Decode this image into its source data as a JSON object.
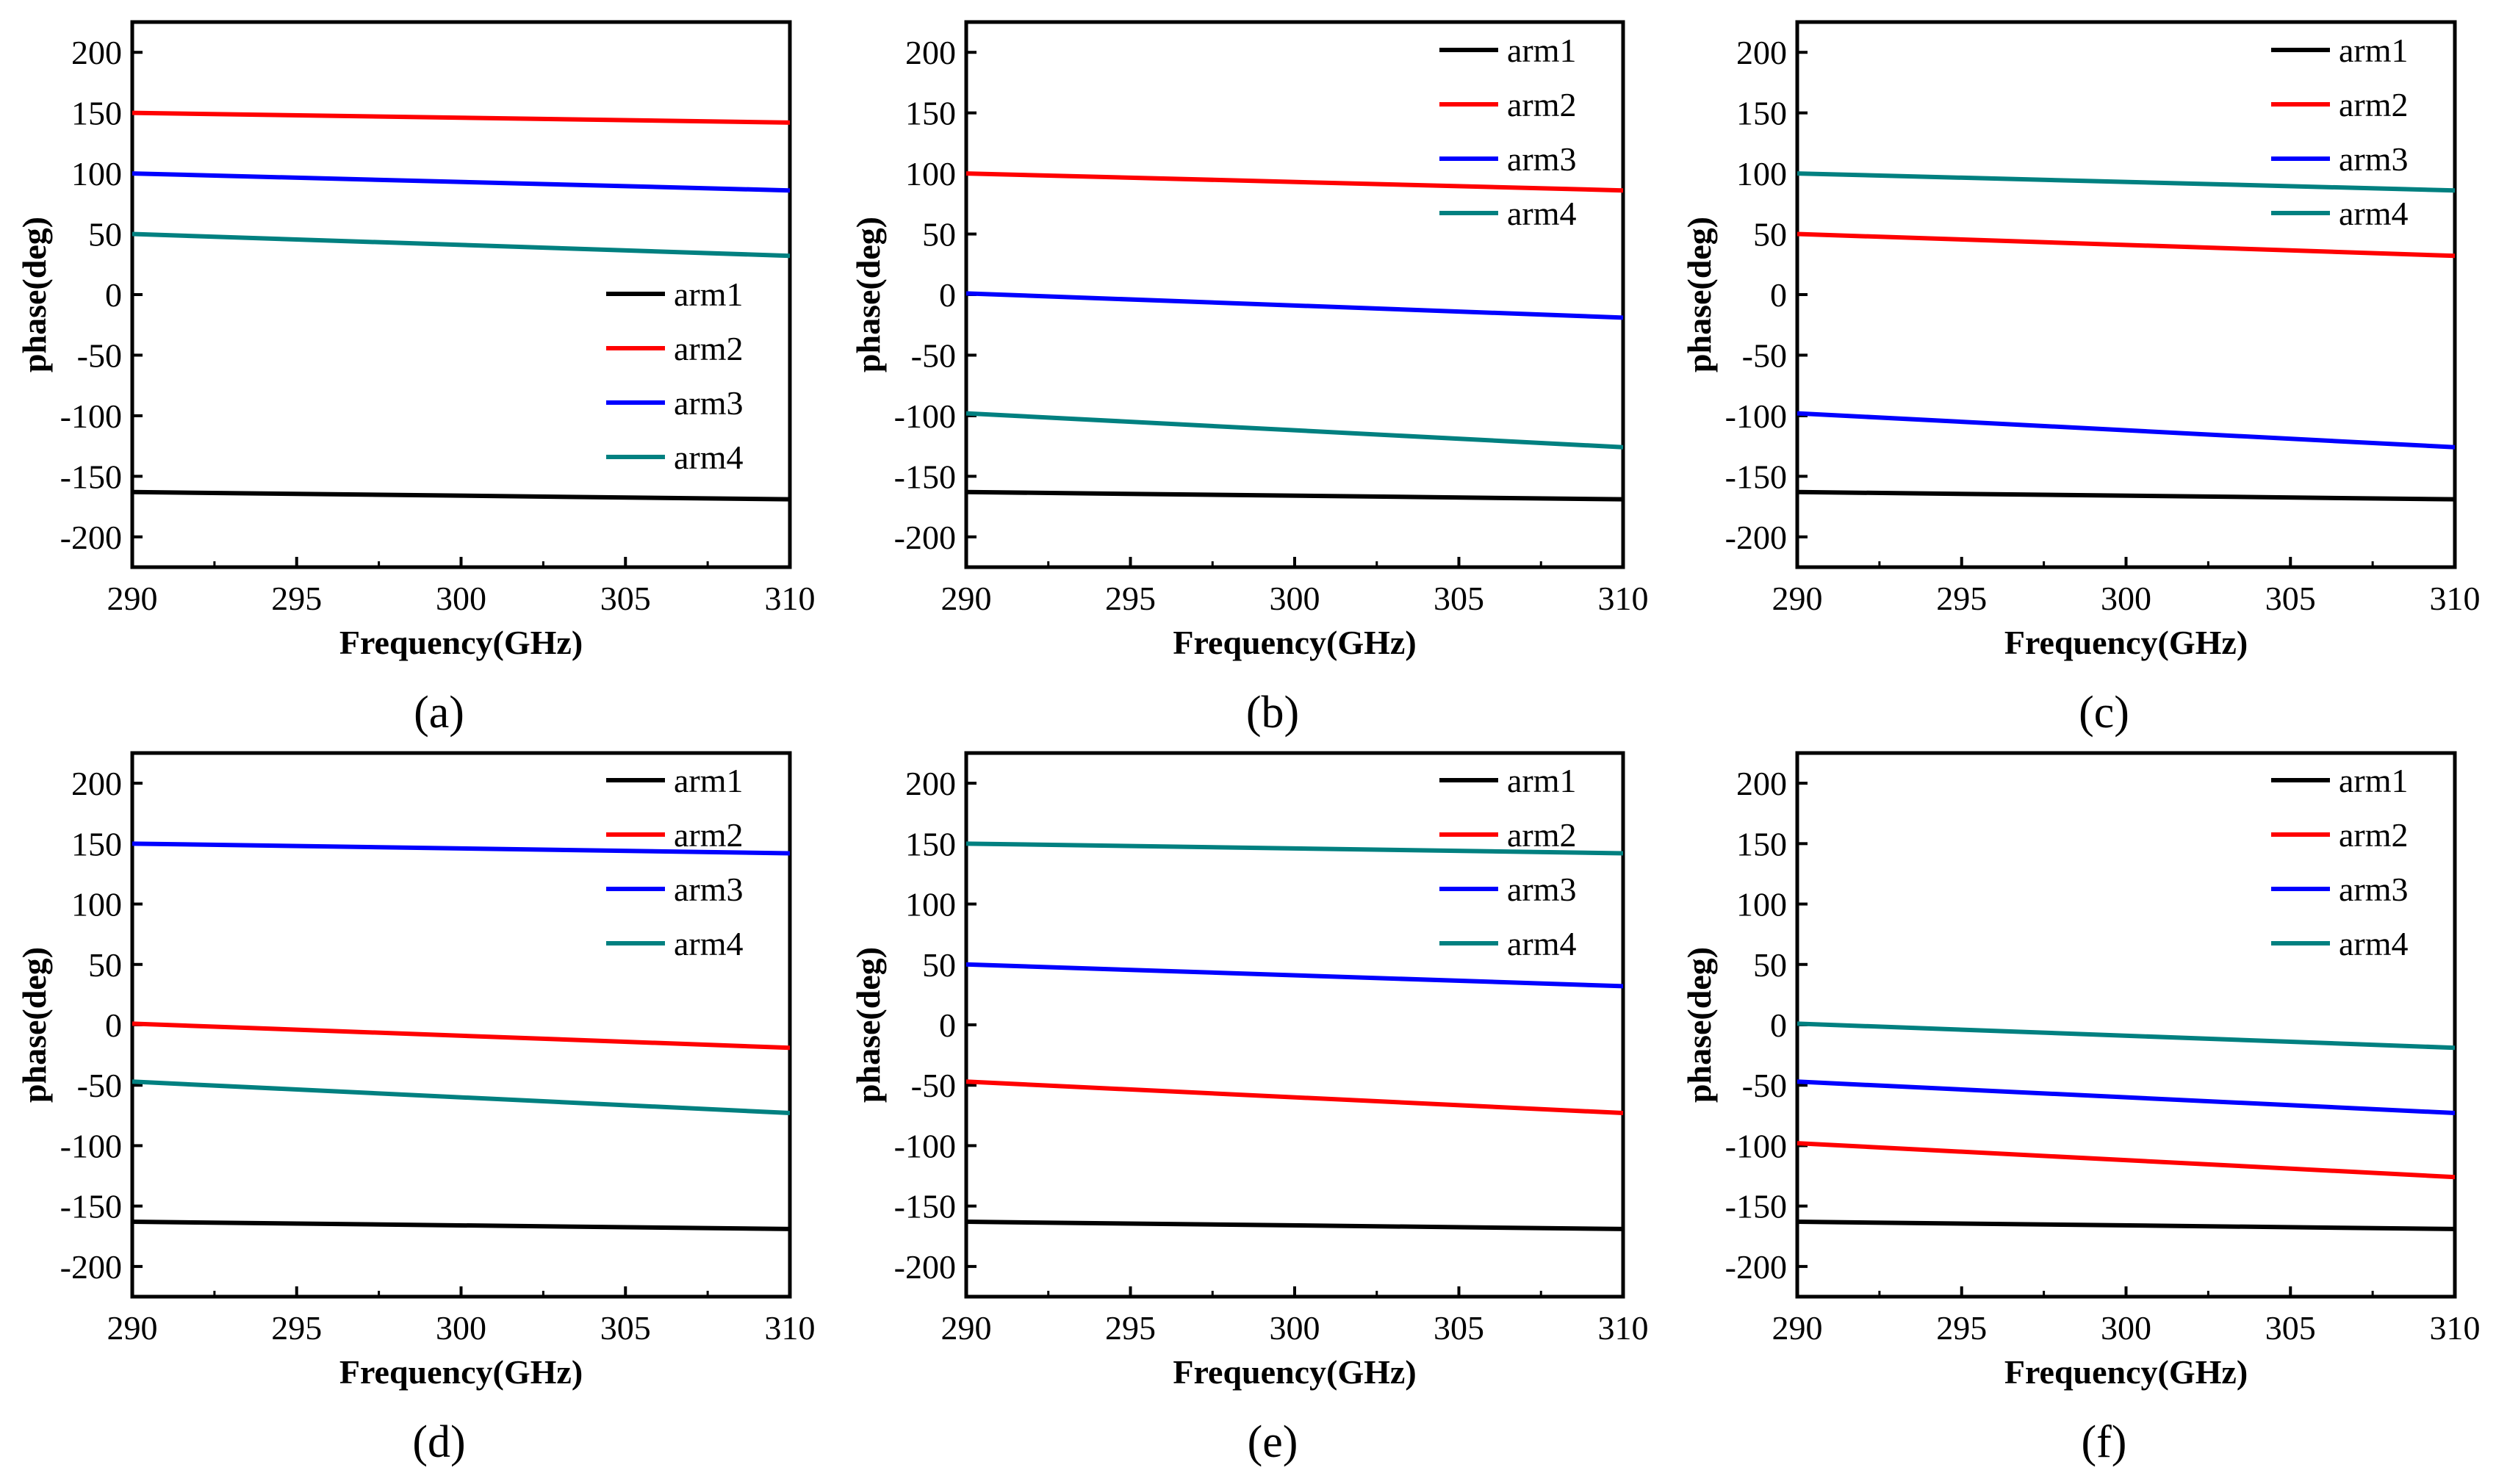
{
  "chart_data": [
    {
      "type": "line",
      "caption": "(a)",
      "xlabel": "Frequency(GHz)",
      "ylabel": "phase(deg)",
      "xlim": [
        290,
        310
      ],
      "ylim": [
        -225,
        225
      ],
      "xticks": [
        290,
        295,
        300,
        305,
        310
      ],
      "yticks": [
        200,
        150,
        100,
        50,
        0,
        -50,
        -100,
        -150,
        -200
      ],
      "legend_position": "lower-right",
      "x": [
        290,
        310
      ],
      "series": [
        {
          "name": "arm1",
          "color": "#000000",
          "values": [
            -163,
            -169
          ]
        },
        {
          "name": "arm2",
          "color": "#ff0000",
          "values": [
            150,
            142
          ]
        },
        {
          "name": "arm3",
          "color": "#0000ff",
          "values": [
            100,
            86
          ]
        },
        {
          "name": "arm4",
          "color": "#008080",
          "values": [
            50,
            32
          ]
        }
      ]
    },
    {
      "type": "line",
      "caption": "(b)",
      "xlabel": "Frequency(GHz)",
      "ylabel": "phase(deg)",
      "xlim": [
        290,
        310
      ],
      "ylim": [
        -225,
        225
      ],
      "xticks": [
        290,
        295,
        300,
        305,
        310
      ],
      "yticks": [
        200,
        150,
        100,
        50,
        0,
        -50,
        -100,
        -150,
        -200
      ],
      "legend_position": "top-right",
      "x": [
        290,
        310
      ],
      "series": [
        {
          "name": "arm1",
          "color": "#000000",
          "values": [
            -163,
            -169
          ]
        },
        {
          "name": "arm2",
          "color": "#ff0000",
          "values": [
            100,
            86
          ]
        },
        {
          "name": "arm3",
          "color": "#0000ff",
          "values": [
            1,
            -19
          ]
        },
        {
          "name": "arm4",
          "color": "#008080",
          "values": [
            -98,
            -126
          ]
        }
      ]
    },
    {
      "type": "line",
      "caption": "(c)",
      "xlabel": "Frequency(GHz)",
      "ylabel": "phase(deg)",
      "xlim": [
        290,
        310
      ],
      "ylim": [
        -225,
        225
      ],
      "xticks": [
        290,
        295,
        300,
        305,
        310
      ],
      "yticks": [
        200,
        150,
        100,
        50,
        0,
        -50,
        -100,
        -150,
        -200
      ],
      "legend_position": "top-right",
      "x": [
        290,
        310
      ],
      "series": [
        {
          "name": "arm1",
          "color": "#000000",
          "values": [
            -163,
            -169
          ]
        },
        {
          "name": "arm2",
          "color": "#ff0000",
          "values": [
            50,
            32
          ]
        },
        {
          "name": "arm3",
          "color": "#0000ff",
          "values": [
            -98,
            -126
          ]
        },
        {
          "name": "arm4",
          "color": "#008080",
          "values": [
            100,
            86
          ]
        }
      ]
    },
    {
      "type": "line",
      "caption": "(d)",
      "xlabel": "Frequency(GHz)",
      "ylabel": "phase(deg)",
      "xlim": [
        290,
        310
      ],
      "ylim": [
        -225,
        225
      ],
      "xticks": [
        290,
        295,
        300,
        305,
        310
      ],
      "yticks": [
        200,
        150,
        100,
        50,
        0,
        -50,
        -100,
        -150,
        -200
      ],
      "legend_position": "top-right",
      "x": [
        290,
        310
      ],
      "series": [
        {
          "name": "arm1",
          "color": "#000000",
          "values": [
            -163,
            -169
          ]
        },
        {
          "name": "arm2",
          "color": "#ff0000",
          "values": [
            1,
            -19
          ]
        },
        {
          "name": "arm3",
          "color": "#0000ff",
          "values": [
            150,
            142
          ]
        },
        {
          "name": "arm4",
          "color": "#008080",
          "values": [
            -47,
            -73
          ]
        }
      ]
    },
    {
      "type": "line",
      "caption": "(e)",
      "xlabel": "Frequency(GHz)",
      "ylabel": "phase(deg)",
      "xlim": [
        290,
        310
      ],
      "ylim": [
        -225,
        225
      ],
      "xticks": [
        290,
        295,
        300,
        305,
        310
      ],
      "yticks": [
        200,
        150,
        100,
        50,
        0,
        -50,
        -100,
        -150,
        -200
      ],
      "legend_position": "top-right",
      "x": [
        290,
        310
      ],
      "series": [
        {
          "name": "arm1",
          "color": "#000000",
          "values": [
            -163,
            -169
          ]
        },
        {
          "name": "arm2",
          "color": "#ff0000",
          "values": [
            -47,
            -73
          ]
        },
        {
          "name": "arm3",
          "color": "#0000ff",
          "values": [
            50,
            32
          ]
        },
        {
          "name": "arm4",
          "color": "#008080",
          "values": [
            150,
            142
          ]
        }
      ]
    },
    {
      "type": "line",
      "caption": "(f)",
      "xlabel": "Frequency(GHz)",
      "ylabel": "phase(deg)",
      "xlim": [
        290,
        310
      ],
      "ylim": [
        -225,
        225
      ],
      "xticks": [
        290,
        295,
        300,
        305,
        310
      ],
      "yticks": [
        200,
        150,
        100,
        50,
        0,
        -50,
        -100,
        -150,
        -200
      ],
      "legend_position": "top-right",
      "x": [
        290,
        310
      ],
      "series": [
        {
          "name": "arm1",
          "color": "#000000",
          "values": [
            -163,
            -169
          ]
        },
        {
          "name": "arm2",
          "color": "#ff0000",
          "values": [
            -98,
            -126
          ]
        },
        {
          "name": "arm3",
          "color": "#0000ff",
          "values": [
            -47,
            -73
          ]
        },
        {
          "name": "arm4",
          "color": "#008080",
          "values": [
            1,
            -19
          ]
        }
      ]
    }
  ]
}
